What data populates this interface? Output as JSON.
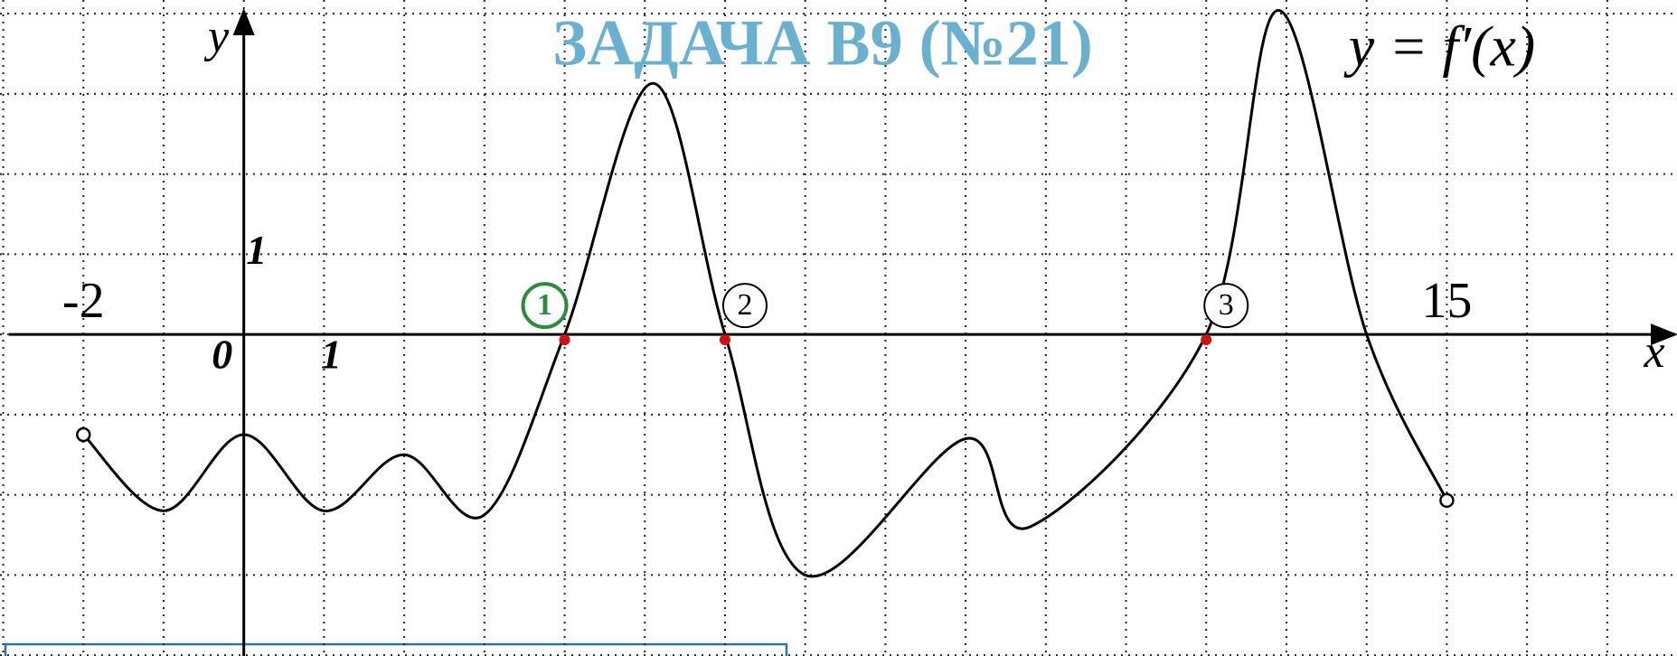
{
  "chart_data": {
    "type": "line",
    "title": "ЗАДАЧА B9 (№21)",
    "legend": "y = f′(x)",
    "x_label": "x",
    "y_label": "y",
    "x": [
      -2,
      -1,
      0,
      1,
      2,
      3,
      4,
      5.1,
      6,
      7,
      9,
      9.8,
      12,
      12.9,
      14,
      15
    ],
    "values": [
      -1.25,
      -2.2,
      -1.25,
      -2.2,
      -1.5,
      -2.25,
      0,
      3.13,
      0,
      -3,
      -1.3,
      -2.4,
      0,
      4.04,
      0,
      -2.07
    ],
    "color": "#000000",
    "xlim": [
      -3.04,
      17.87
    ],
    "ylim": [
      -4.01,
      4.17
    ],
    "xticks": [
      -2,
      0,
      1,
      15
    ],
    "yticks": [
      1
    ],
    "grid": true,
    "markers": [
      {
        "x": 4,
        "label": "1",
        "color": "#2e8b3e"
      },
      {
        "x": 6,
        "label": "2",
        "color": "#000000"
      },
      {
        "x": 12,
        "label": "3",
        "color": "#000000"
      }
    ]
  }
}
